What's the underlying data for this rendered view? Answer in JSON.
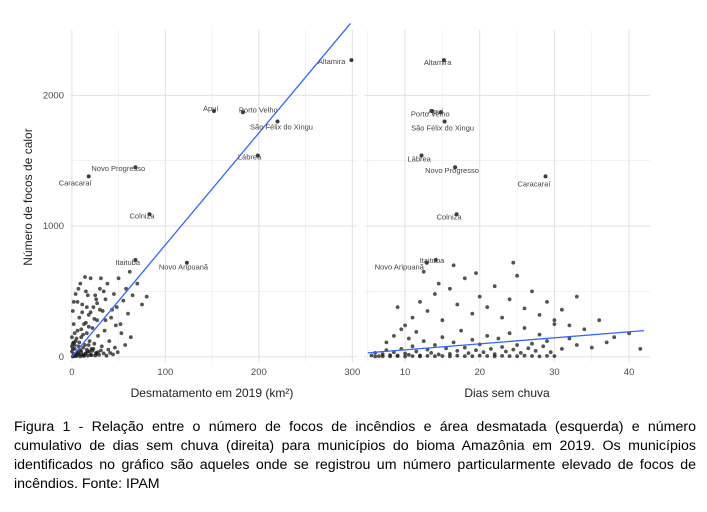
{
  "caption": "Figura 1 - Relação entre o número de focos de incêndios e área desmatada (esquerda) e número cumulativo de dias sem chuva (direita) para municípios do bioma Amazônia em 2019. Os municípios identificados no gráfico são aqueles onde se registrou um número particularmente elevado de focos de incêndios. Fonte: IPAM",
  "colors": {
    "points": "#1a1a1a",
    "trend": "#3366ff",
    "grid": "#ebebeb"
  },
  "chart_data": [
    {
      "type": "scatter",
      "title": "",
      "xlabel": "Desmatamento em 2019 (km²)",
      "ylabel": "Número de focos de calor",
      "xlim": [
        -2,
        305
      ],
      "ylim": [
        -40,
        2500
      ],
      "xticks": [
        0,
        100,
        200,
        300
      ],
      "yticks": [
        0,
        1000,
        2000
      ],
      "grid": true,
      "trend": {
        "x": [
          0,
          298
        ],
        "y": [
          0,
          2550
        ]
      },
      "labeled_points": [
        {
          "label": "Altamira",
          "x": 299,
          "y": 2270
        },
        {
          "label": "Apuí",
          "x": 152,
          "y": 1880
        },
        {
          "label": "Porto Velho",
          "x": 183,
          "y": 1870
        },
        {
          "label": "São Félix do Xingu",
          "x": 220,
          "y": 1800
        },
        {
          "label": "Lábrea",
          "x": 199,
          "y": 1540
        },
        {
          "label": "Novo Progresso",
          "x": 68,
          "y": 1450
        },
        {
          "label": "Caracaraí",
          "x": 18,
          "y": 1380
        },
        {
          "label": "Colniza",
          "x": 83,
          "y": 1090
        },
        {
          "label": "Itaituba",
          "x": 68,
          "y": 740
        },
        {
          "label": "Novo Aripuanã",
          "x": 123,
          "y": 720
        }
      ],
      "points": [
        [
          2,
          20
        ],
        [
          3,
          60
        ],
        [
          4,
          120
        ],
        [
          5,
          30
        ],
        [
          6,
          200
        ],
        [
          7,
          80
        ],
        [
          8,
          300
        ],
        [
          9,
          50
        ],
        [
          10,
          150
        ],
        [
          11,
          400
        ],
        [
          12,
          10
        ],
        [
          13,
          250
        ],
        [
          14,
          90
        ],
        [
          15,
          500
        ],
        [
          16,
          180
        ],
        [
          17,
          40
        ],
        [
          18,
          320
        ],
        [
          19,
          120
        ],
        [
          20,
          600
        ],
        [
          21,
          60
        ],
        [
          22,
          220
        ],
        [
          23,
          380
        ],
        [
          24,
          100
        ],
        [
          25,
          470
        ],
        [
          26,
          30
        ],
        [
          27,
          280
        ],
        [
          28,
          160
        ],
        [
          30,
          520
        ],
        [
          32,
          80
        ],
        [
          33,
          350
        ],
        [
          35,
          200
        ],
        [
          36,
          440
        ],
        [
          38,
          560
        ],
        [
          40,
          120
        ],
        [
          42,
          300
        ],
        [
          45,
          480
        ],
        [
          48,
          380
        ],
        [
          50,
          600
        ],
        [
          52,
          250
        ],
        [
          55,
          430
        ],
        [
          58,
          520
        ],
        [
          60,
          330
        ],
        [
          62,
          650
        ],
        [
          65,
          470
        ],
        [
          70,
          560
        ],
        [
          75,
          400
        ],
        [
          80,
          460
        ],
        [
          5,
          5
        ],
        [
          8,
          15
        ],
        [
          10,
          40
        ],
        [
          3,
          8
        ],
        [
          6,
          35
        ],
        [
          12,
          70
        ],
        [
          14,
          20
        ],
        [
          16,
          55
        ],
        [
          18,
          90
        ],
        [
          20,
          15
        ],
        [
          22,
          45
        ],
        [
          25,
          10
        ],
        [
          28,
          35
        ],
        [
          1,
          2
        ],
        [
          2,
          5
        ],
        [
          4,
          12
        ],
        [
          7,
          25
        ],
        [
          9,
          3
        ],
        [
          11,
          18
        ],
        [
          13,
          6
        ],
        [
          15,
          28
        ],
        [
          17,
          9
        ],
        [
          19,
          40
        ],
        [
          21,
          12
        ],
        [
          23,
          60
        ],
        [
          26,
          22
        ],
        [
          29,
          14
        ],
        [
          31,
          48
        ],
        [
          34,
          26
        ],
        [
          37,
          8
        ],
        [
          39,
          55
        ],
        [
          41,
          30
        ],
        [
          44,
          18
        ],
        [
          46,
          70
        ],
        [
          49,
          35
        ],
        [
          3,
          90
        ],
        [
          5,
          140
        ],
        [
          8,
          110
        ],
        [
          10,
          210
        ],
        [
          12,
          170
        ],
        [
          15,
          260
        ],
        [
          18,
          230
        ],
        [
          20,
          340
        ],
        [
          24,
          290
        ],
        [
          27,
          410
        ],
        [
          30,
          360
        ],
        [
          34,
          500
        ],
        [
          4,
          480
        ],
        [
          6,
          420
        ],
        [
          9,
          560
        ],
        [
          11,
          340
        ],
        [
          14,
          610
        ],
        [
          17,
          470
        ],
        [
          2,
          250
        ],
        [
          3,
          180
        ],
        [
          1,
          100
        ],
        [
          1,
          350
        ],
        [
          2,
          420
        ],
        [
          7,
          520
        ],
        [
          16,
          380
        ],
        [
          26,
          440
        ],
        [
          31,
          600
        ],
        [
          36,
          280
        ],
        [
          43,
          360
        ],
        [
          47,
          240
        ],
        [
          53,
          180
        ],
        [
          57,
          90
        ],
        [
          63,
          150
        ],
        [
          0,
          40
        ],
        [
          0,
          80
        ],
        [
          0,
          150
        ],
        [
          1,
          60
        ],
        [
          2,
          110
        ]
      ]
    },
    {
      "type": "scatter",
      "title": "",
      "xlabel": "Dias sem chuva",
      "ylabel": "",
      "xlim": [
        4.5,
        42.8
      ],
      "ylim": [
        -40,
        2500
      ],
      "xticks": [
        10,
        20,
        30,
        40
      ],
      "yticks": [
        0,
        1000,
        2000
      ],
      "grid": true,
      "trend": {
        "x": [
          5,
          42
        ],
        "y": [
          30,
          200
        ]
      },
      "labeled_points": [
        {
          "label": "Altamira",
          "x": 15.2,
          "y": 2270
        },
        {
          "label": "Porto Velho",
          "x": 14.8,
          "y": 1870
        },
        {
          "label": "Apuí",
          "x": 13.6,
          "y": 1880
        },
        {
          "label": "São Félix do Xingu",
          "x": 15.3,
          "y": 1800
        },
        {
          "label": "Lábrea",
          "x": 12.2,
          "y": 1540
        },
        {
          "label": "Novo Progresso",
          "x": 16.7,
          "y": 1450
        },
        {
          "label": "Caracaraí",
          "x": 28.8,
          "y": 1380
        },
        {
          "label": "Colniza",
          "x": 16.9,
          "y": 1090
        },
        {
          "label": "Itaituba",
          "x": 14.1,
          "y": 740
        },
        {
          "label": "Novo Aripuanã",
          "x": 12.9,
          "y": 720
        }
      ],
      "points": [
        [
          5.5,
          10
        ],
        [
          6,
          30
        ],
        [
          6.5,
          5
        ],
        [
          7,
          20
        ],
        [
          7.5,
          50
        ],
        [
          8,
          12
        ],
        [
          8.5,
          35
        ],
        [
          9,
          8
        ],
        [
          9.5,
          60
        ],
        [
          10,
          25
        ],
        [
          10.5,
          15
        ],
        [
          11,
          80
        ],
        [
          11.5,
          40
        ],
        [
          12,
          10
        ],
        [
          12.5,
          120
        ],
        [
          13,
          55
        ],
        [
          13.5,
          30
        ],
        [
          14,
          90
        ],
        [
          14.5,
          18
        ],
        [
          15,
          150
        ],
        [
          15.5,
          65
        ],
        [
          16,
          22
        ],
        [
          16.5,
          110
        ],
        [
          17,
          45
        ],
        [
          17.5,
          200
        ],
        [
          18,
          70
        ],
        [
          18.5,
          28
        ],
        [
          19,
          130
        ],
        [
          19.5,
          50
        ],
        [
          20,
          95
        ],
        [
          20.5,
          35
        ],
        [
          21,
          160
        ],
        [
          21.5,
          60
        ],
        [
          22,
          20
        ],
        [
          22.5,
          140
        ],
        [
          23,
          75
        ],
        [
          23.5,
          40
        ],
        [
          24,
          180
        ],
        [
          24.5,
          55
        ],
        [
          25,
          90
        ],
        [
          25.5,
          30
        ],
        [
          26,
          220
        ],
        [
          26.5,
          65
        ],
        [
          27,
          100
        ],
        [
          27.5,
          45
        ],
        [
          28,
          170
        ],
        [
          28.5,
          80
        ],
        [
          29,
          120
        ],
        [
          29.5,
          35
        ],
        [
          30,
          250
        ],
        [
          31,
          60
        ],
        [
          32,
          140
        ],
        [
          33,
          90
        ],
        [
          34,
          210
        ],
        [
          35,
          70
        ],
        [
          36,
          280
        ],
        [
          37,
          110
        ],
        [
          38,
          150
        ],
        [
          40,
          180
        ],
        [
          41.5,
          60
        ],
        [
          9,
          380
        ],
        [
          10,
          240
        ],
        [
          11,
          300
        ],
        [
          12,
          420
        ],
        [
          13,
          350
        ],
        [
          14,
          480
        ],
        [
          15,
          280
        ],
        [
          16,
          520
        ],
        [
          17,
          400
        ],
        [
          18,
          600
        ],
        [
          19,
          330
        ],
        [
          20,
          460
        ],
        [
          21,
          380
        ],
        [
          22,
          540
        ],
        [
          23,
          300
        ],
        [
          24,
          440
        ],
        [
          25,
          620
        ],
        [
          26,
          370
        ],
        [
          27,
          500
        ],
        [
          28,
          320
        ],
        [
          29,
          420
        ],
        [
          30,
          280
        ],
        [
          31,
          360
        ],
        [
          32,
          240
        ],
        [
          33,
          460
        ],
        [
          12.5,
          650
        ],
        [
          14.5,
          560
        ],
        [
          16.5,
          700
        ],
        [
          19.5,
          640
        ],
        [
          24.5,
          720
        ],
        [
          6,
          2
        ],
        [
          7,
          4
        ],
        [
          8,
          3
        ],
        [
          9,
          6
        ],
        [
          10,
          2
        ],
        [
          11,
          5
        ],
        [
          12,
          3
        ],
        [
          13,
          7
        ],
        [
          14,
          4
        ],
        [
          15,
          6
        ],
        [
          16,
          3
        ],
        [
          17,
          8
        ],
        [
          18,
          5
        ],
        [
          19,
          4
        ],
        [
          20,
          9
        ],
        [
          21,
          6
        ],
        [
          22,
          3
        ],
        [
          23,
          7
        ],
        [
          24,
          5
        ],
        [
          25,
          4
        ],
        [
          26,
          8
        ],
        [
          27,
          6
        ],
        [
          28,
          3
        ],
        [
          29,
          7
        ],
        [
          30,
          5
        ],
        [
          7.5,
          110
        ],
        [
          8.5,
          160
        ],
        [
          9.5,
          210
        ],
        [
          10.5,
          140
        ],
        [
          11.5,
          190
        ]
      ]
    }
  ]
}
